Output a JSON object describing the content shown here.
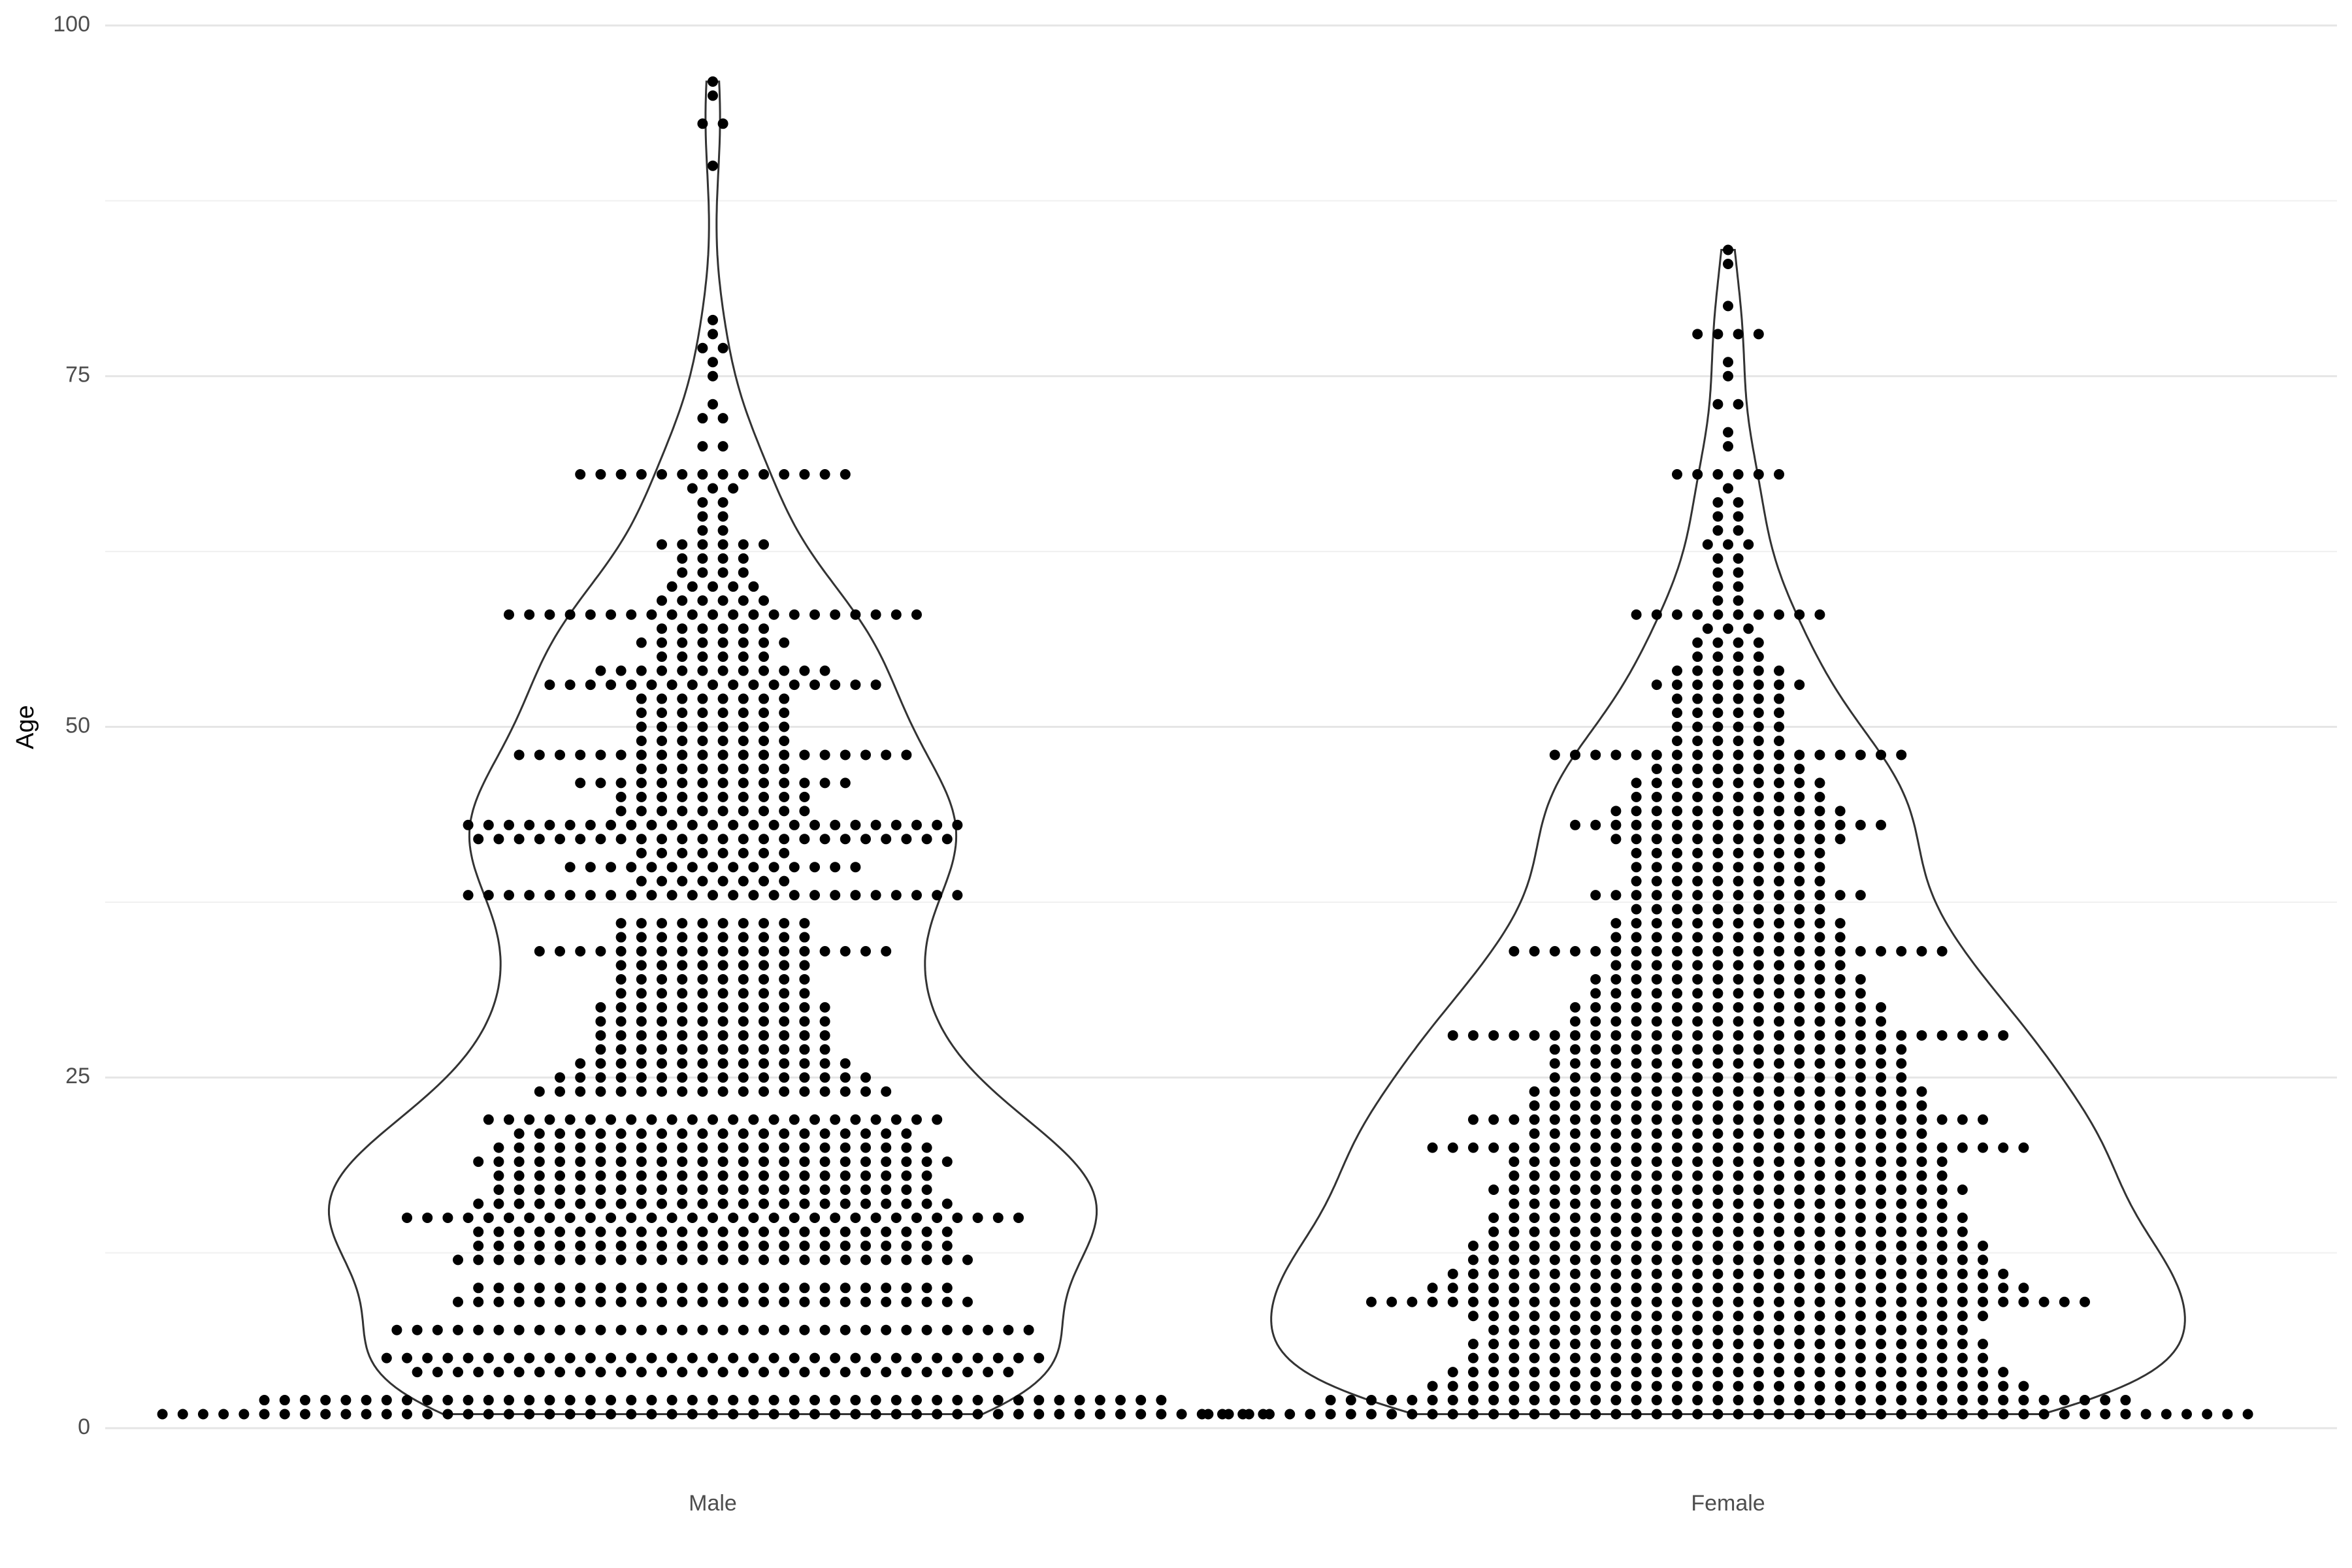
{
  "chart_data": {
    "type": "violin-dotplot",
    "y_label": "Age",
    "categories": [
      "Male",
      "Female"
    ],
    "series": [
      {
        "name": "Male",
        "color": "#000000",
        "ages": [
          1,
          2,
          4,
          5,
          7,
          9,
          10,
          12,
          13,
          14,
          15,
          16,
          17,
          18,
          19,
          20,
          21,
          22,
          24,
          25,
          26,
          27,
          28,
          29,
          30,
          31,
          32,
          33,
          34,
          35,
          36,
          38,
          39,
          40,
          41,
          42,
          43,
          44,
          45,
          46,
          47,
          48,
          49,
          50,
          51,
          52,
          53,
          54,
          55,
          56,
          57,
          58,
          59,
          60,
          61,
          62,
          63,
          64,
          65,
          66,
          67,
          68,
          70,
          72,
          73,
          75,
          76,
          77,
          78,
          79,
          90,
          93,
          95,
          96
        ],
        "counts": [
          55,
          45,
          30,
          33,
          32,
          26,
          24,
          26,
          24,
          24,
          31,
          24,
          22,
          22,
          24,
          22,
          20,
          23,
          18,
          16,
          14,
          12,
          12,
          12,
          12,
          10,
          10,
          10,
          18,
          10,
          10,
          25,
          8,
          15,
          8,
          24,
          25,
          10,
          10,
          14,
          8,
          20,
          8,
          8,
          8,
          8,
          17,
          12,
          6,
          8,
          6,
          21,
          6,
          5,
          4,
          4,
          6,
          2,
          2,
          2,
          3,
          14,
          2,
          2,
          1,
          1,
          1,
          2,
          1,
          1,
          1,
          2,
          1,
          1
        ]
      },
      {
        "name": "Female",
        "color": "#000000",
        "ages": [
          1,
          2,
          3,
          4,
          5,
          6,
          7,
          8,
          9,
          10,
          11,
          12,
          13,
          14,
          15,
          16,
          17,
          18,
          19,
          20,
          21,
          22,
          23,
          24,
          25,
          26,
          27,
          28,
          29,
          30,
          31,
          32,
          33,
          34,
          35,
          36,
          37,
          38,
          39,
          40,
          41,
          42,
          43,
          44,
          45,
          46,
          47,
          48,
          49,
          50,
          51,
          52,
          53,
          54,
          55,
          56,
          57,
          58,
          59,
          60,
          61,
          62,
          63,
          64,
          65,
          66,
          67,
          68,
          70,
          71,
          73,
          75,
          76,
          78,
          80,
          83,
          84
        ],
        "counts": [
          52,
          40,
          30,
          28,
          26,
          26,
          24,
          26,
          36,
          30,
          28,
          26,
          26,
          24,
          24,
          22,
          24,
          22,
          22,
          30,
          20,
          26,
          20,
          20,
          18,
          18,
          18,
          28,
          16,
          16,
          14,
          14,
          12,
          22,
          12,
          12,
          10,
          14,
          10,
          10,
          10,
          12,
          16,
          12,
          10,
          10,
          8,
          18,
          6,
          6,
          6,
          6,
          8,
          6,
          4,
          4,
          3,
          10,
          2,
          2,
          2,
          2,
          3,
          2,
          2,
          2,
          1,
          6,
          1,
          1,
          2,
          1,
          1,
          4,
          1,
          1,
          1
        ]
      }
    ],
    "violin_color": "#333333",
    "ylim": [
      0,
      100
    ],
    "yticks": [
      0,
      25,
      50,
      75,
      100
    ],
    "minor_yticks": [
      12.5,
      37.5,
      62.5,
      87.5
    ],
    "grid": true
  }
}
